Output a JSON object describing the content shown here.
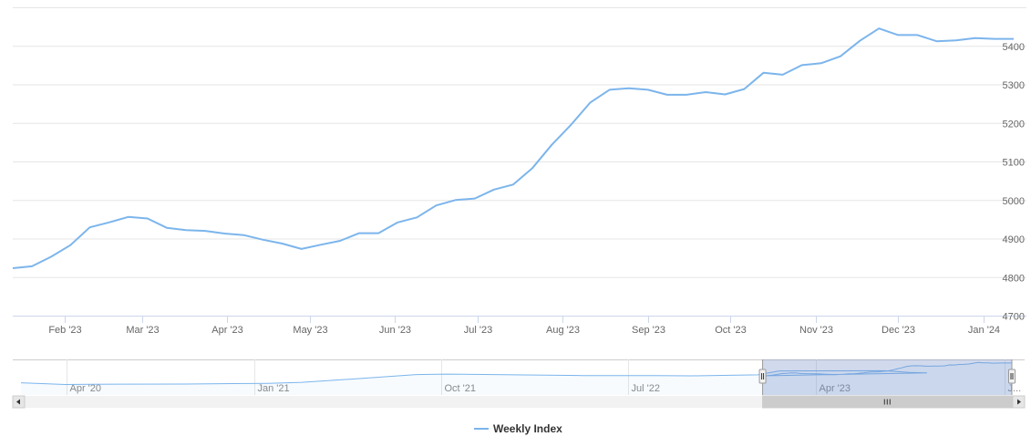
{
  "chart_data": {
    "type": "line",
    "series": [
      {
        "name": "Weekly Index",
        "x": [
          "2023-01-13",
          "2023-01-20",
          "2023-01-27",
          "2023-02-03",
          "2023-02-10",
          "2023-02-17",
          "2023-02-24",
          "2023-03-03",
          "2023-03-10",
          "2023-03-17",
          "2023-03-24",
          "2023-03-31",
          "2023-04-07",
          "2023-04-14",
          "2023-04-21",
          "2023-04-28",
          "2023-05-05",
          "2023-05-12",
          "2023-05-19",
          "2023-05-26",
          "2023-06-02",
          "2023-06-09",
          "2023-06-16",
          "2023-06-23",
          "2023-06-30",
          "2023-07-07",
          "2023-07-14",
          "2023-07-21",
          "2023-07-28",
          "2023-08-04",
          "2023-08-11",
          "2023-08-18",
          "2023-08-25",
          "2023-09-01",
          "2023-09-08",
          "2023-09-15",
          "2023-09-22",
          "2023-09-29",
          "2023-10-06",
          "2023-10-13",
          "2023-10-20",
          "2023-10-27",
          "2023-11-03",
          "2023-11-10",
          "2023-11-17",
          "2023-11-24",
          "2023-12-01",
          "2023-12-08",
          "2023-12-15",
          "2023-12-22",
          "2023-12-29",
          "2024-01-05",
          "2024-01-12"
        ],
        "values": [
          4823,
          4828,
          4853,
          4883,
          4929,
          4942,
          4956,
          4952,
          4928,
          4922,
          4920,
          4913,
          4909,
          4897,
          4887,
          4873,
          4884,
          4894,
          4914,
          4914,
          4942,
          4955,
          4986,
          5000,
          5004,
          5027,
          5040,
          5083,
          5143,
          5195,
          5253,
          5286,
          5290,
          5286,
          5273,
          5273,
          5280,
          5274,
          5288,
          5330,
          5325,
          5350,
          5355,
          5373,
          5413,
          5445,
          5428,
          5428,
          5412,
          5414,
          5420,
          5418,
          5418
        ]
      }
    ],
    "x_tick_labels": [
      "Feb '23",
      "Mar '23",
      "Apr '23",
      "May '23",
      "Jun '23",
      "Jul '23",
      "Aug '23",
      "Sep '23",
      "Oct '23",
      "Nov '23",
      "Dec '23",
      "Jan '24"
    ],
    "y_tick_labels": [
      "4700",
      "4800",
      "4900",
      "5000",
      "5100",
      "5200",
      "5300",
      "5400"
    ],
    "ylim": [
      4700,
      5500
    ],
    "grid": "horizontal",
    "legend": "bottom-center",
    "line_color": "#7cb5ec",
    "navigator": {
      "x_labels": [
        "Apr '20",
        "Jan '21",
        "Oct '21",
        "Jul '22",
        "Apr '23",
        "J..."
      ],
      "selected_from": "2023-01-13",
      "selected_to": "2024-01-12",
      "selection_color": "#ccd6eb"
    }
  }
}
